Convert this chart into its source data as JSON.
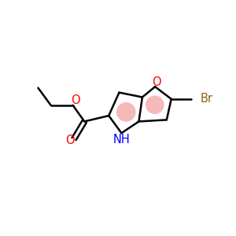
{
  "background_color": "#ffffff",
  "bond_color": "#000000",
  "bond_width": 1.8,
  "aromatic_circle_color": "#f08080",
  "aromatic_circle_alpha": 0.55,
  "O_color": "#ff0000",
  "N_color": "#0000ff",
  "Br_color": "#8b6410",
  "figure_size": [
    3.0,
    3.0
  ],
  "dpi": 100,
  "xlim": [
    0,
    10
  ],
  "ylim": [
    0,
    10
  ]
}
